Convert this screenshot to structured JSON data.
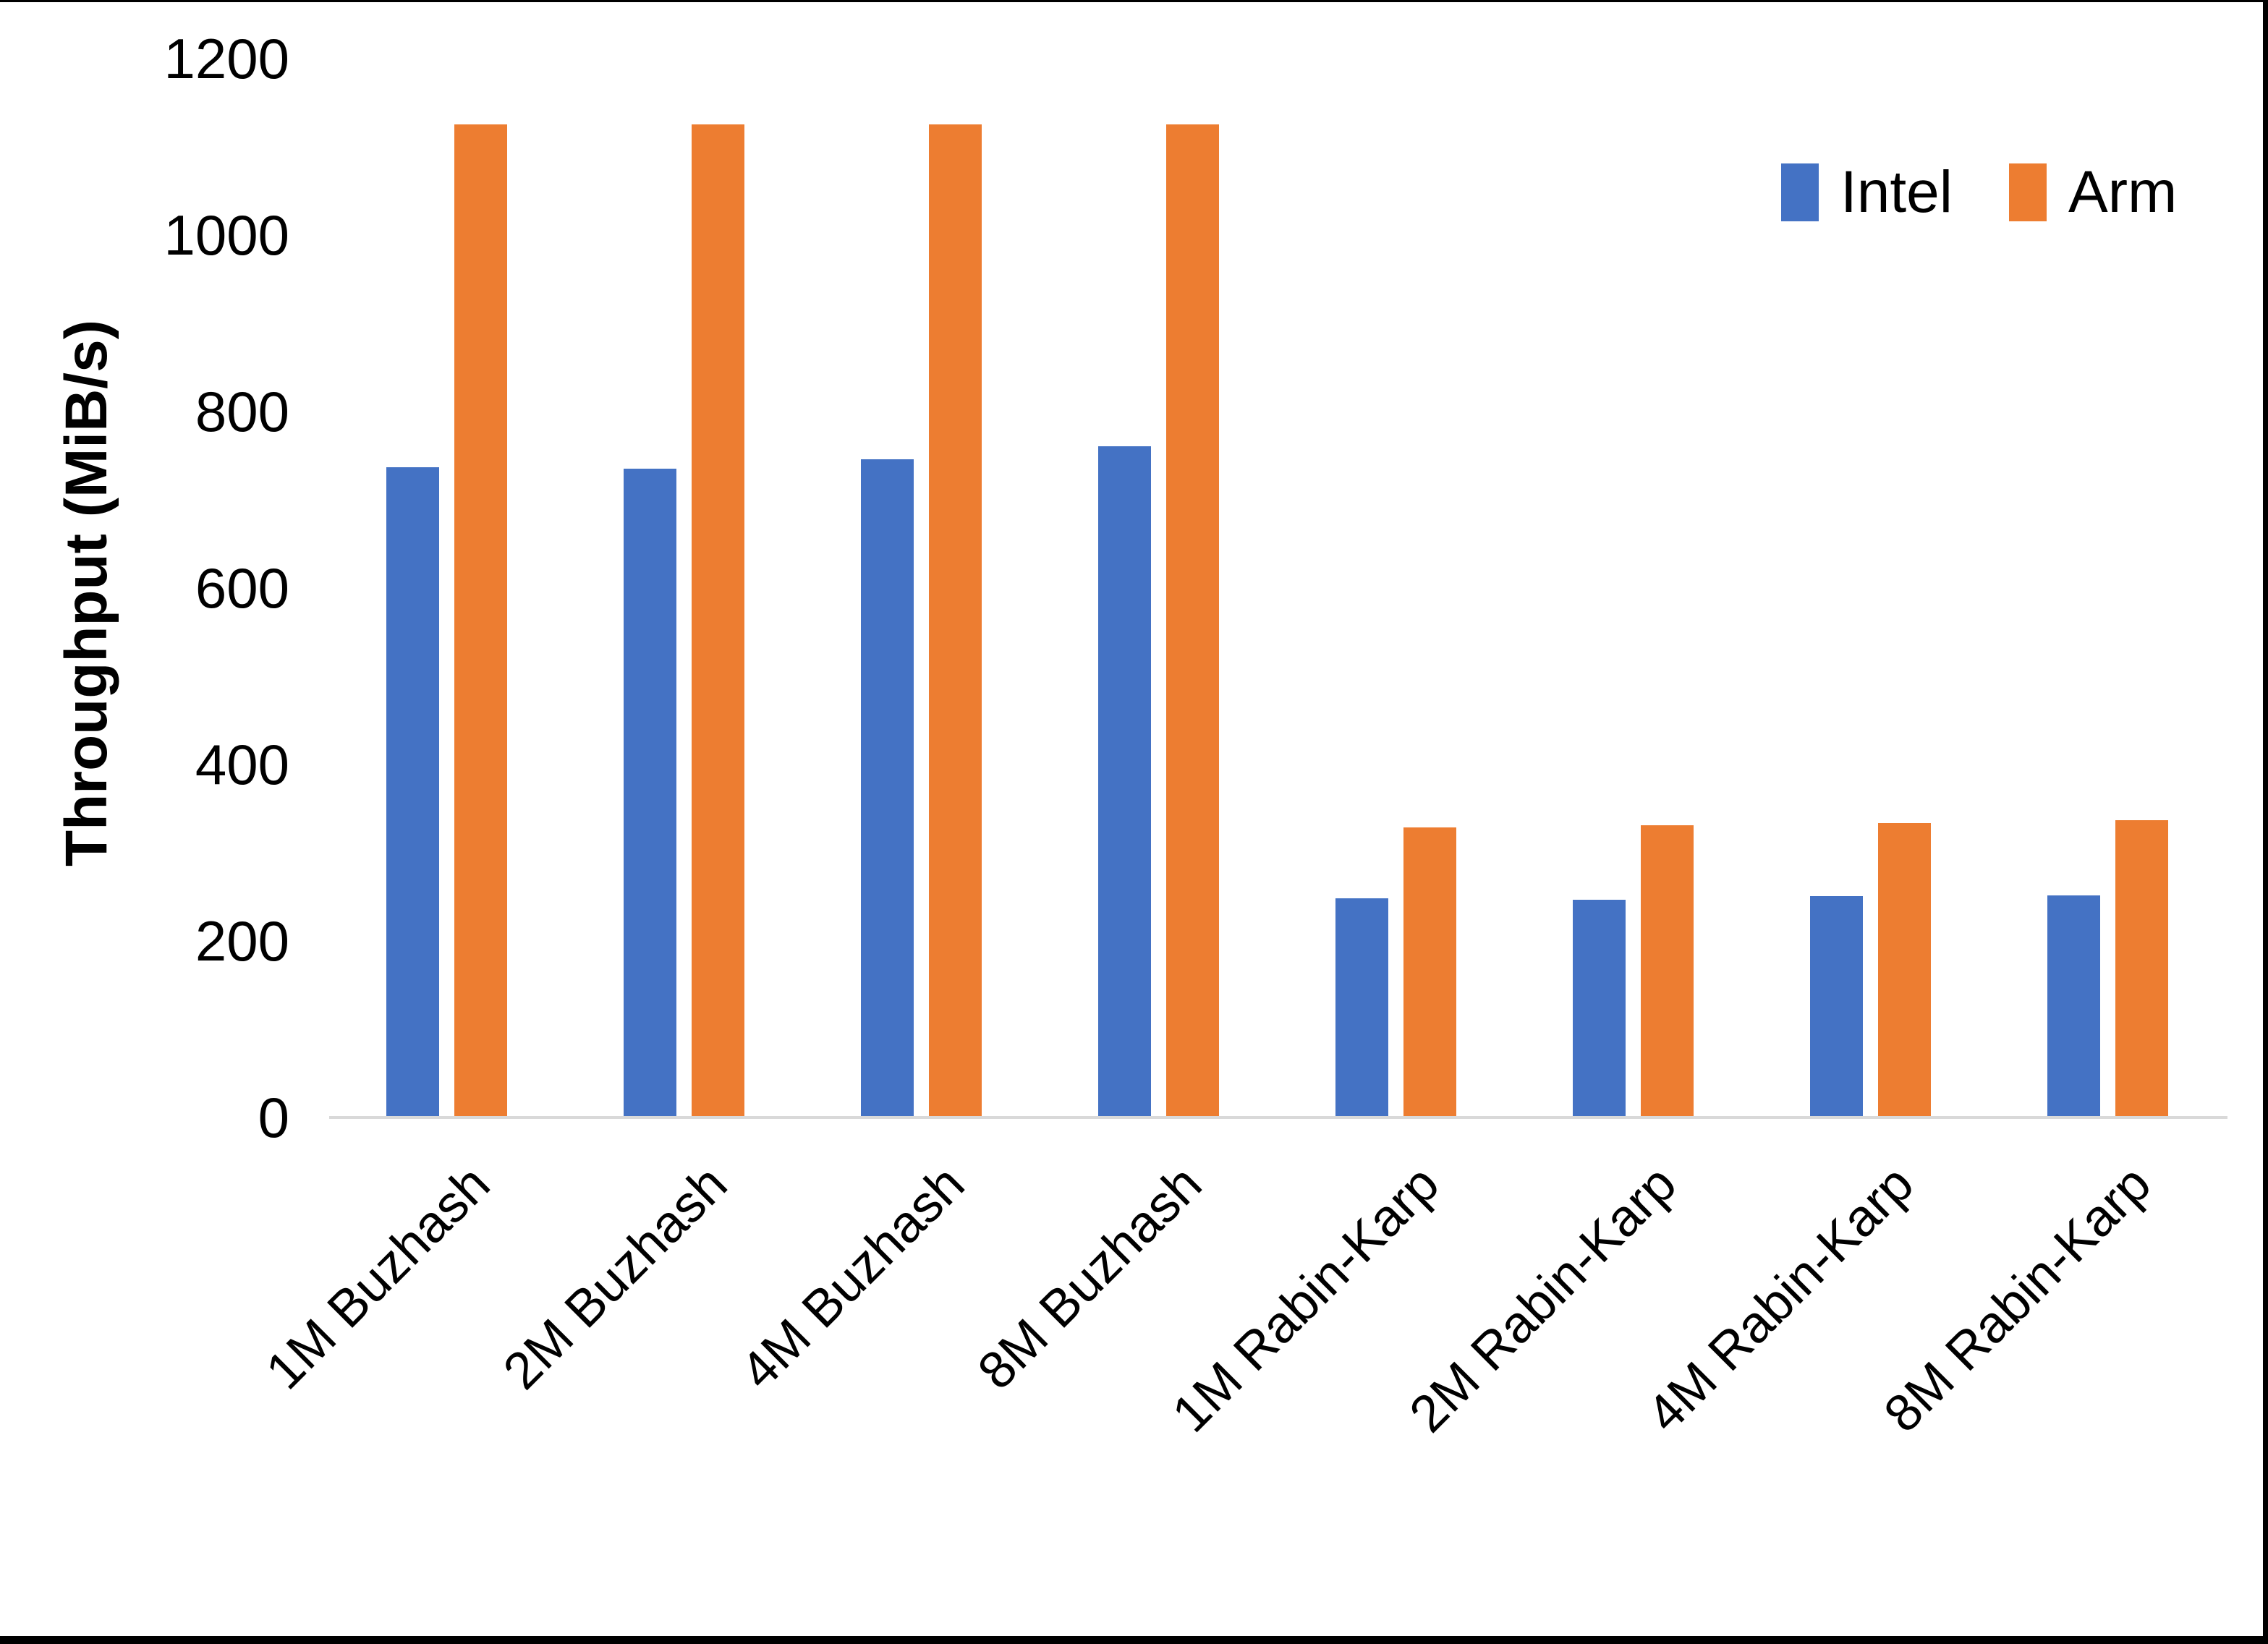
{
  "chart_data": {
    "type": "bar",
    "title": "",
    "xlabel": "",
    "ylabel": "Throughput (MiB/s)",
    "ylim": [
      0,
      1200
    ],
    "yticks": [
      0,
      200,
      400,
      600,
      800,
      1000,
      1200
    ],
    "grid": false,
    "legend_position": "top-right",
    "categories": [
      "1M Buzhash",
      "2M Buzhash",
      "4M Buzhash",
      "8M Buzhash",
      "1M Rabin-Karp",
      "2M Rabin-Karp",
      "4M Rabin-Karp",
      "8M Rabin-Karp"
    ],
    "series": [
      {
        "name": "Intel",
        "color": "#4472C4",
        "values": [
          737,
          735,
          746,
          761,
          248,
          247,
          251,
          252
        ]
      },
      {
        "name": "Arm",
        "color": "#ED7D31",
        "values": [
          1125,
          1125,
          1125,
          1125,
          329,
          331,
          334,
          337
        ]
      }
    ]
  },
  "legend": {
    "items": [
      {
        "label": "Intel",
        "color": "#4472C4"
      },
      {
        "label": "Arm",
        "color": "#ED7D31"
      }
    ]
  },
  "colors": {
    "axis_line": "#D9D9D9",
    "text": "#000000",
    "background": "#FFFFFF"
  }
}
